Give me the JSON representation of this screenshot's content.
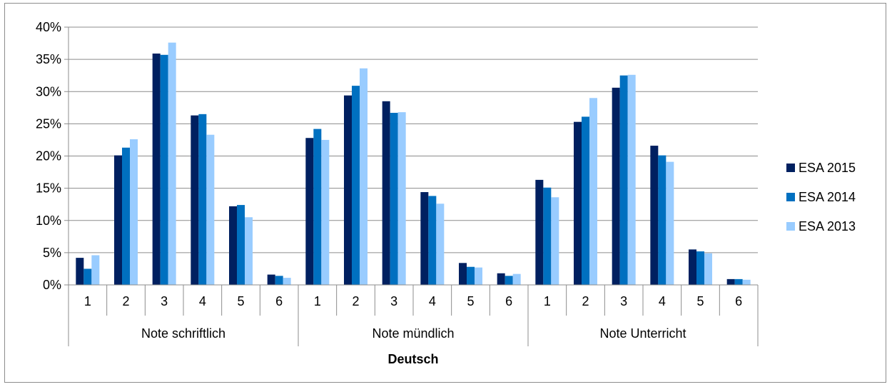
{
  "chart_data": {
    "type": "bar",
    "xlabel": "Deutsch",
    "ylabel": "",
    "ylim": [
      0,
      40
    ],
    "y_tick_labels": [
      "0%",
      "5%",
      "10%",
      "15%",
      "20%",
      "25%",
      "30%",
      "35%",
      "40%"
    ],
    "y_ticks": [
      0,
      5,
      10,
      15,
      20,
      25,
      30,
      35,
      40
    ],
    "grid": true,
    "legend_position": "right",
    "groups": [
      "Note schriftlich",
      "Note mündlich",
      "Note Unterricht"
    ],
    "categories": [
      "1",
      "2",
      "3",
      "4",
      "5",
      "6",
      "1",
      "2",
      "3",
      "4",
      "5",
      "6",
      "1",
      "2",
      "3",
      "4",
      "5",
      "6"
    ],
    "series": [
      {
        "name": "ESA 2015",
        "color": "#002060",
        "values": [
          4.2,
          20.1,
          35.9,
          26.3,
          12.2,
          1.6,
          22.8,
          29.4,
          28.5,
          14.4,
          3.4,
          1.8,
          16.3,
          25.3,
          30.6,
          21.6,
          5.5,
          0.9
        ]
      },
      {
        "name": "ESA 2014",
        "color": "#0070C0",
        "values": [
          2.5,
          21.3,
          35.7,
          26.5,
          12.4,
          1.4,
          24.2,
          30.9,
          26.7,
          13.8,
          2.8,
          1.4,
          15.1,
          26.1,
          32.5,
          20.1,
          5.2,
          0.9
        ]
      },
      {
        "name": "ESA 2013",
        "color": "#99CCFF",
        "values": [
          4.6,
          22.6,
          37.6,
          23.3,
          10.5,
          1.1,
          22.5,
          33.6,
          26.8,
          12.6,
          2.7,
          1.7,
          13.6,
          29.0,
          32.6,
          19.1,
          4.9,
          0.8
        ]
      }
    ]
  }
}
